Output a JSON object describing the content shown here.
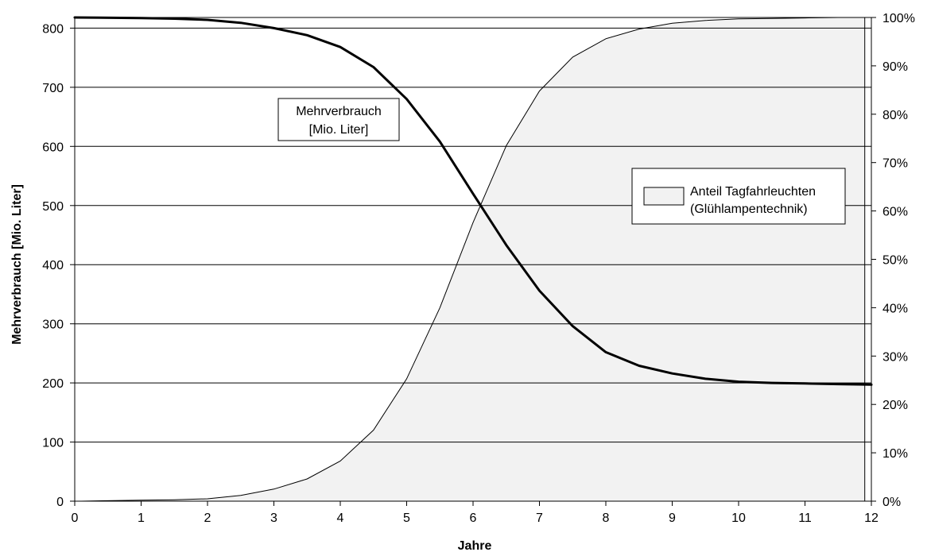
{
  "chart_data": {
    "type": "line",
    "title": "",
    "xlabel": "Jahre",
    "ylabel": "Mehrverbrauch  [Mio. Liter]",
    "xlim": [
      0,
      12
    ],
    "ylim": [
      0,
      800
    ],
    "y2lim": [
      0,
      100
    ],
    "x_ticks": [
      "0",
      "1",
      "2",
      "3",
      "4",
      "5",
      "6",
      "7",
      "8",
      "9",
      "10",
      "11",
      "12"
    ],
    "y_ticks": [
      "0",
      "100",
      "200",
      "300",
      "400",
      "500",
      "600",
      "700",
      "800"
    ],
    "y2_ticks": [
      "0%",
      "10%",
      "20%",
      "30%",
      "40%",
      "50%",
      "60%",
      "70%",
      "80%",
      "90%",
      "100%"
    ],
    "grid": "horizontal",
    "series": [
      {
        "name": "Mehrverbrauch [Mio. Liter]",
        "label_lines": [
          "Mehrverbrauch",
          "[Mio. Liter]"
        ],
        "kind": "line",
        "axis": "left",
        "color": "#000000",
        "x": [
          0,
          1,
          1.5,
          2,
          2.5,
          3,
          3.5,
          4,
          4.5,
          5,
          5.5,
          6,
          6.5,
          7,
          7.5,
          8,
          8.5,
          9,
          9.5,
          10,
          10.5,
          11,
          11.5,
          12
        ],
        "y": [
          818,
          817,
          816,
          814,
          809,
          800,
          788,
          768,
          734,
          680,
          608,
          520,
          433,
          356,
          296,
          252,
          229,
          216,
          207,
          202,
          200,
          199,
          198,
          197
        ]
      },
      {
        "name": "Anteil Tagfahrleuchten (Glühlampentechnik)",
        "label_lines": [
          "Anteil Tagfahrleuchten",
          "(Glühlampentechnik)"
        ],
        "kind": "area",
        "axis": "right",
        "color": "#f2f2f2",
        "x": [
          0.1,
          0.5,
          1,
          1.5,
          2,
          2.5,
          3,
          3.5,
          4,
          4.5,
          5,
          5.5,
          6,
          6.5,
          7,
          7.5,
          8,
          8.5,
          9,
          9.5,
          10,
          10.5,
          11,
          11.5,
          11.9
        ],
        "y": [
          0,
          0.1,
          0.2,
          0.3,
          0.5,
          1.2,
          2.5,
          4.6,
          8.3,
          14.7,
          25.3,
          40,
          57.6,
          73.5,
          84.8,
          91.8,
          95.6,
          97.6,
          98.8,
          99.4,
          99.7,
          99.8,
          99.9,
          100,
          100
        ]
      }
    ]
  }
}
